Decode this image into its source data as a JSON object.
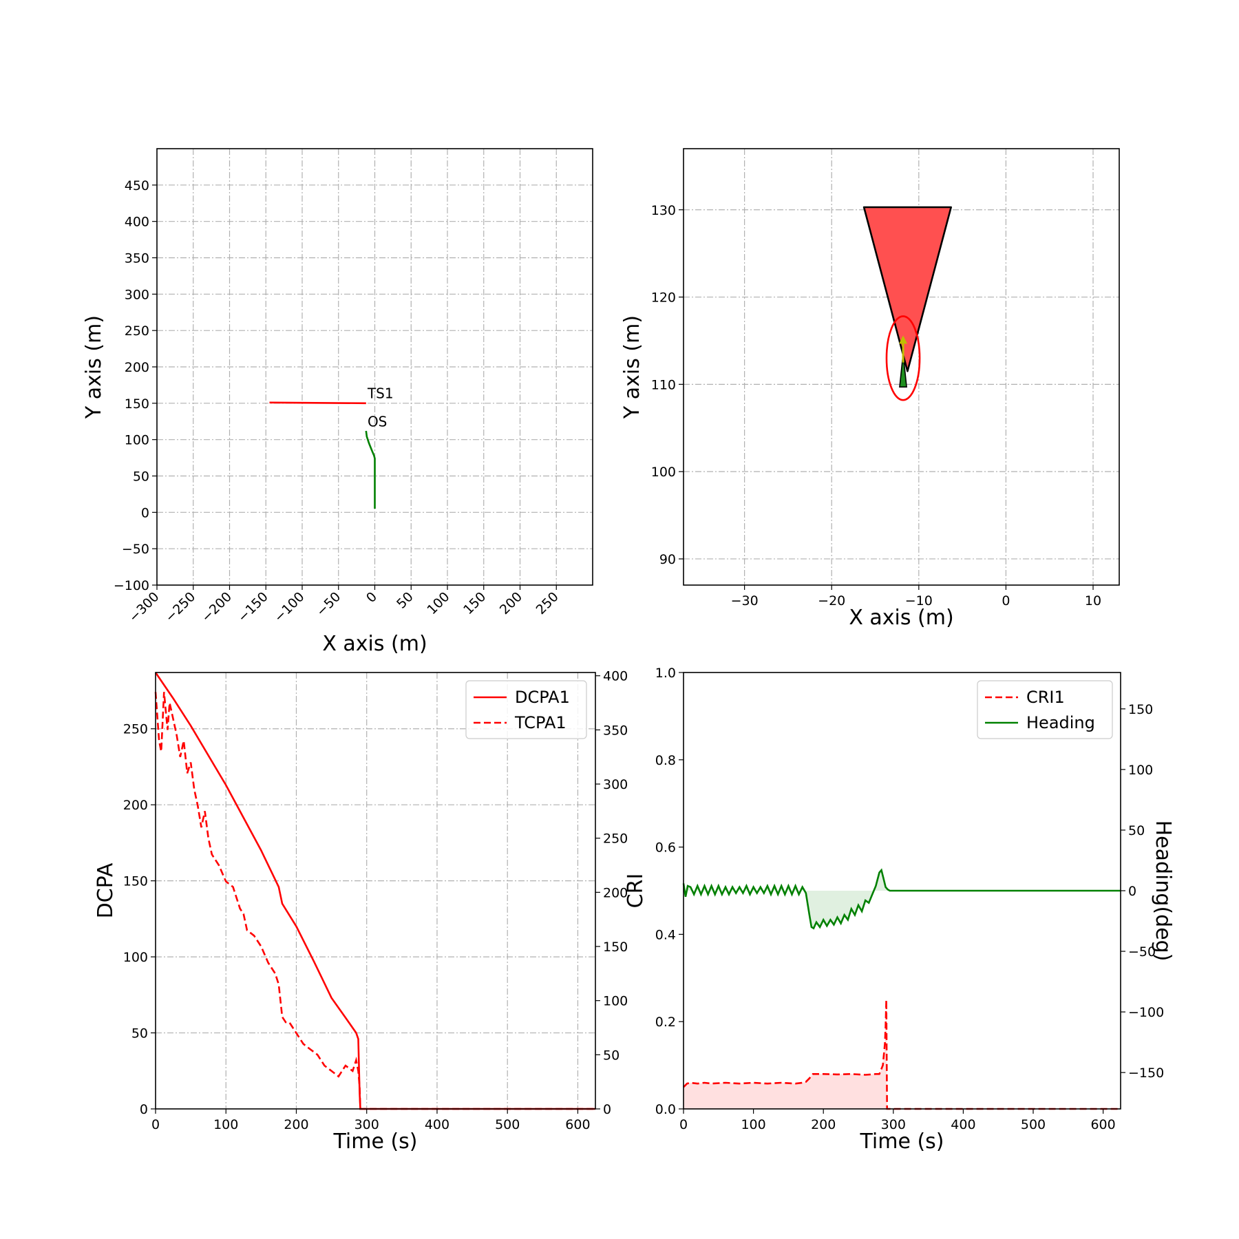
{
  "colors": {
    "red": "#ff0000",
    "green": "#008000",
    "grid": "#b0b0b0",
    "sector_fill": "#ff5050",
    "arrow": "#bfbf00"
  },
  "chart_data": [
    {
      "id": "trajectory",
      "type": "line",
      "xlabel": "X axis (m)",
      "ylabel": "Y axis (m)",
      "xlim": [
        -300,
        300
      ],
      "ylim": [
        -100,
        500
      ],
      "xticks": [
        -300,
        -250,
        -200,
        -150,
        -100,
        -50,
        0,
        50,
        100,
        150,
        200,
        250
      ],
      "xtick_labels": [
        "−300",
        "−250",
        "−200",
        "−150",
        "−100",
        "−50",
        "0",
        "50",
        "100",
        "150",
        "200",
        "250"
      ],
      "yticks": [
        -100,
        -50,
        0,
        50,
        100,
        150,
        200,
        250,
        300,
        350,
        400,
        450
      ],
      "ytick_labels": [
        "−100",
        "−50",
        "0",
        "50",
        "100",
        "150",
        "200",
        "250",
        "300",
        "350",
        "400",
        "450"
      ],
      "grid": true,
      "series": [
        {
          "name": "TS1",
          "color": "red",
          "x": [
            -145,
            -12
          ],
          "y": [
            151,
            150
          ]
        },
        {
          "name": "OS",
          "color": "green",
          "x": [
            0,
            0,
            0,
            0,
            -1,
            -4,
            -8,
            -11,
            -12
          ],
          "y": [
            5,
            30,
            60,
            74,
            78,
            85,
            95,
            104,
            112
          ]
        }
      ],
      "annotations": [
        {
          "text": "TS1",
          "x": -10,
          "y": 157
        },
        {
          "text": "OS",
          "x": -10,
          "y": 118
        }
      ]
    },
    {
      "id": "zoom",
      "type": "line",
      "xlabel": "X axis (m)",
      "ylabel": "Y axis (m)",
      "xlim": [
        -37,
        13
      ],
      "ylim": [
        87,
        137
      ],
      "xticks": [
        -30,
        -20,
        -10,
        0,
        10
      ],
      "xtick_labels": [
        "−30",
        "−20",
        "−10",
        "0",
        "10"
      ],
      "yticks": [
        90,
        100,
        110,
        120,
        130
      ],
      "ytick_labels": [
        "90",
        "100",
        "110",
        "120",
        "130"
      ],
      "grid": true,
      "sector": {
        "apex": [
          -11.3,
          111.5
        ],
        "left": [
          -16.3,
          130.3
        ],
        "right": [
          -6.3,
          130.3
        ]
      },
      "ellipse": {
        "cx": -11.8,
        "cy": 113,
        "rx": 1.9,
        "ry": 4.8
      },
      "vessel": {
        "x": -11.8,
        "y_bottom": 109.7,
        "y_top": 113.5,
        "half_width": 0.4
      },
      "arrow": {
        "x": -11.8,
        "y_from": 112.5,
        "y_to": 115.6
      }
    },
    {
      "id": "dcpa_tcpa",
      "type": "line",
      "xlabel": "Time (s)",
      "ylabel": "DCPA",
      "xlim": [
        0,
        625
      ],
      "ylim": [
        0,
        287
      ],
      "y2lim": [
        0,
        403
      ],
      "xticks": [
        0,
        100,
        200,
        300,
        400,
        500,
        600
      ],
      "xtick_labels": [
        "0",
        "100",
        "200",
        "300",
        "400",
        "500",
        "600"
      ],
      "yticks": [
        0,
        50,
        100,
        150,
        200,
        250
      ],
      "ytick_labels": [
        "0",
        "50",
        "100",
        "150",
        "200",
        "250"
      ],
      "y2ticks": [
        0,
        50,
        100,
        150,
        200,
        250,
        300,
        350,
        400
      ],
      "y2tick_labels": [
        "0",
        "50",
        "100",
        "150",
        "200",
        "250",
        "300",
        "350",
        "400"
      ],
      "grid": true,
      "legend": "top-right",
      "series": [
        {
          "name": "DCPA1",
          "axis": "left",
          "style": "solid",
          "color": "red",
          "x": [
            0,
            25,
            50,
            100,
            150,
            175,
            180,
            200,
            225,
            250,
            270,
            285,
            288,
            290,
            291,
            300,
            400,
            500,
            600,
            625
          ],
          "y": [
            287,
            270,
            252,
            213,
            170,
            146,
            135,
            120,
            97,
            73,
            60,
            50,
            46,
            10,
            0,
            0,
            0,
            0,
            0,
            0
          ]
        },
        {
          "name": "TCPA1",
          "axis": "right",
          "style": "dashed",
          "color": "red",
          "x": [
            0,
            5,
            8,
            12,
            17,
            20,
            25,
            30,
            35,
            40,
            45,
            50,
            55,
            60,
            65,
            70,
            75,
            80,
            90,
            100,
            110,
            120,
            125,
            130,
            140,
            150,
            160,
            170,
            175,
            180,
            185,
            190,
            200,
            210,
            220,
            230,
            240,
            250,
            260,
            265,
            270,
            280,
            285,
            288,
            290,
            291,
            300,
            400,
            500,
            600,
            625
          ],
          "y": [
            385,
            340,
            330,
            385,
            350,
            375,
            360,
            345,
            325,
            340,
            310,
            320,
            295,
            280,
            260,
            275,
            250,
            235,
            225,
            210,
            205,
            185,
            180,
            165,
            160,
            150,
            135,
            125,
            115,
            85,
            80,
            80,
            70,
            60,
            55,
            50,
            40,
            35,
            30,
            35,
            40,
            35,
            45,
            35,
            20,
            0,
            0,
            0,
            0,
            0,
            0
          ]
        }
      ]
    },
    {
      "id": "cri_heading",
      "type": "line",
      "xlabel": "Time (s)",
      "ylabel": "CRI",
      "y2label": "Heading(deg)",
      "xlim": [
        0,
        625
      ],
      "ylim": [
        0,
        1
      ],
      "y2lim": [
        -180,
        180
      ],
      "xticks": [
        0,
        100,
        200,
        300,
        400,
        500,
        600
      ],
      "xtick_labels": [
        "0",
        "100",
        "200",
        "300",
        "400",
        "500",
        "600"
      ],
      "yticks": [
        0,
        0.2,
        0.4,
        0.6,
        0.8,
        1.0
      ],
      "ytick_labels": [
        "0.0",
        "0.2",
        "0.4",
        "0.6",
        "0.8",
        "1.0"
      ],
      "y2ticks": [
        -150,
        -100,
        -50,
        0,
        50,
        100,
        150
      ],
      "y2tick_labels": [
        "−150",
        "−100",
        "−50",
        "0",
        "50",
        "100",
        "150"
      ],
      "grid": false,
      "legend": "top-right",
      "series": [
        {
          "name": "CRI1",
          "axis": "left",
          "style": "dashed",
          "color": "red",
          "fill": true,
          "x": [
            0,
            5,
            10,
            20,
            30,
            40,
            60,
            80,
            100,
            120,
            140,
            160,
            170,
            175,
            180,
            185,
            200,
            220,
            240,
            260,
            275,
            280,
            285,
            288,
            289,
            290,
            291,
            300,
            400,
            500,
            600,
            625
          ],
          "y": [
            0.05,
            0.058,
            0.06,
            0.058,
            0.06,
            0.058,
            0.06,
            0.058,
            0.06,
            0.058,
            0.06,
            0.058,
            0.06,
            0.062,
            0.07,
            0.08,
            0.08,
            0.079,
            0.08,
            0.078,
            0.08,
            0.08,
            0.1,
            0.15,
            0.19,
            0.25,
            0.0,
            0.0,
            0.0,
            0.0,
            0.0,
            0.0
          ]
        },
        {
          "name": "Heading",
          "axis": "right",
          "style": "solid",
          "color": "green",
          "fill": true,
          "x": [
            0,
            3,
            6,
            10,
            15,
            20,
            25,
            30,
            35,
            40,
            45,
            50,
            55,
            60,
            65,
            70,
            75,
            80,
            85,
            90,
            95,
            100,
            105,
            110,
            115,
            120,
            125,
            130,
            135,
            140,
            145,
            150,
            155,
            160,
            165,
            170,
            175,
            180,
            183,
            186,
            190,
            195,
            200,
            205,
            210,
            215,
            220,
            225,
            230,
            235,
            240,
            245,
            250,
            255,
            260,
            265,
            270,
            275,
            280,
            283,
            286,
            289,
            292,
            295,
            300,
            400,
            500,
            600,
            625
          ],
          "y": [
            6,
            -5,
            4,
            3,
            -3,
            4,
            -3,
            4,
            -3,
            4,
            -3,
            4,
            -3,
            3,
            -3,
            3,
            -2,
            3,
            -2,
            4,
            -3,
            3,
            -2,
            3,
            -2,
            4,
            -3,
            4,
            -3,
            4,
            -3,
            4,
            -3,
            4,
            -3,
            3,
            -2,
            -20,
            -30,
            -31,
            -26,
            -30,
            -24,
            -29,
            -24,
            -28,
            -22,
            -27,
            -20,
            -24,
            -15,
            -20,
            -12,
            -17,
            -8,
            -10,
            -3,
            4,
            15,
            17,
            10,
            3,
            1,
            0,
            0,
            0,
            0,
            0,
            0
          ]
        }
      ]
    }
  ]
}
